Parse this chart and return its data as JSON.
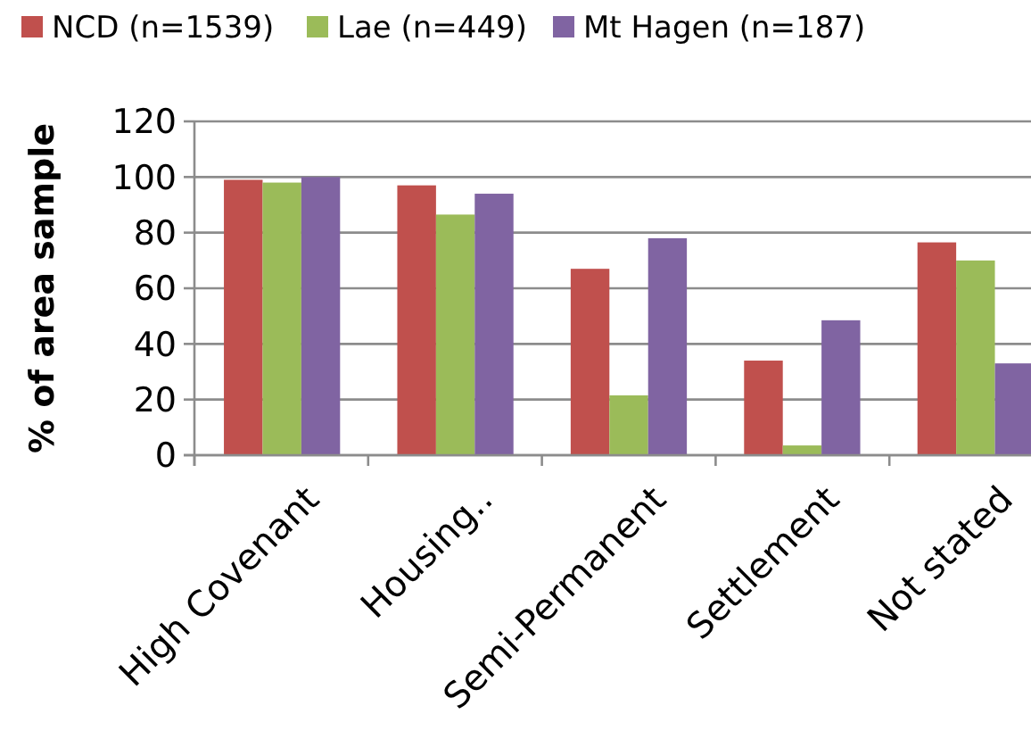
{
  "chart_data": {
    "type": "bar",
    "ylabel": "% of area sample",
    "categories": [
      "High Covenant",
      "Housing..",
      "Semi-Permanent",
      "Settlement",
      "Not stated"
    ],
    "series": [
      {
        "name": "NCD (n=1539)",
        "color": "#c0504d",
        "values": [
          99,
          97,
          67,
          34,
          76.5
        ]
      },
      {
        "name": "Lae (n=449)",
        "color": "#9bbb59",
        "values": [
          98,
          86.5,
          21.5,
          3.5,
          70
        ]
      },
      {
        "name": "Mt Hagen (n=187)",
        "color": "#8064a2",
        "values": [
          100,
          94,
          78,
          48.5,
          33
        ]
      }
    ],
    "ylim": [
      0,
      120
    ],
    "yticks": [
      0,
      20,
      40,
      60,
      80,
      100,
      120
    ],
    "grid": "y",
    "legend": "top"
  }
}
